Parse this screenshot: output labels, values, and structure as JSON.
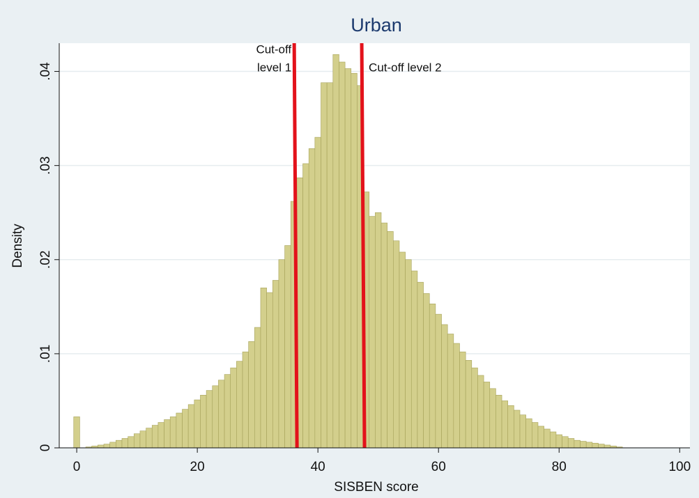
{
  "chart_data": {
    "type": "histogram",
    "title": "Urban",
    "xlabel": "SISBEN score",
    "ylabel": "Density",
    "color": "#d3cf8c",
    "edgecolor": "#a6a25a",
    "bins": [
      -0.5,
      0.5,
      1.5,
      2.5,
      3.5,
      4.5,
      5.5,
      6.5,
      7.5,
      8.5,
      9.5,
      10.5,
      11.5,
      12.5,
      13.5,
      14.5,
      15.5,
      16.5,
      17.5,
      18.5,
      19.5,
      20.5,
      21.5,
      22.5,
      23.5,
      24.5,
      25.5,
      26.5,
      27.5,
      28.5,
      29.5,
      30.5,
      31.5,
      32.5,
      33.5,
      34.5,
      35.5,
      36.5,
      37.5,
      38.5,
      39.5,
      40.5,
      41.5,
      42.5,
      43.5,
      44.5,
      45.5,
      46.5,
      47.5,
      48.5,
      49.5,
      50.5,
      51.5,
      52.5,
      53.5,
      54.5,
      55.5,
      56.5,
      57.5,
      58.5,
      59.5,
      60.5,
      61.5,
      62.5,
      63.5,
      64.5,
      65.5,
      66.5,
      67.5,
      68.5,
      69.5,
      70.5,
      71.5,
      72.5,
      73.5,
      74.5,
      75.5,
      76.5,
      77.5,
      78.5,
      79.5,
      80.5,
      81.5,
      82.5,
      83.5,
      84.5,
      85.5,
      86.5,
      87.5,
      88.5,
      89.5,
      90.5
    ],
    "values": [
      0.0033,
      0,
      0.0001,
      0.0002,
      0.0003,
      0.0004,
      0.0006,
      0.0008,
      0.001,
      0.0012,
      0.0015,
      0.0018,
      0.0021,
      0.0024,
      0.0027,
      0.003,
      0.0033,
      0.0037,
      0.0041,
      0.0046,
      0.0051,
      0.0056,
      0.0061,
      0.0066,
      0.0072,
      0.0078,
      0.0085,
      0.0092,
      0.0102,
      0.0113,
      0.0128,
      0.017,
      0.0165,
      0.0178,
      0.02,
      0.0215,
      0.0262,
      0.0287,
      0.0302,
      0.0318,
      0.033,
      0.0388,
      0.0388,
      0.0418,
      0.041,
      0.0403,
      0.0398,
      0.0385,
      0.0272,
      0.0246,
      0.025,
      0.0239,
      0.023,
      0.022,
      0.0208,
      0.02,
      0.0188,
      0.0176,
      0.0164,
      0.0153,
      0.0142,
      0.0131,
      0.0121,
      0.0111,
      0.0102,
      0.0093,
      0.0085,
      0.0077,
      0.007,
      0.0063,
      0.0056,
      0.005,
      0.0045,
      0.004,
      0.0035,
      0.0031,
      0.0027,
      0.0023,
      0.002,
      0.0017,
      0.0014,
      0.0012,
      0.001,
      0.0008,
      0.0007,
      0.0006,
      0.0005,
      0.0004,
      0.0003,
      0.0002,
      0.0001
    ],
    "cutoffs": [
      {
        "x": 36.3,
        "label": [
          "Cut-off",
          "level 1"
        ],
        "color": "#e3121b"
      },
      {
        "x": 47.5,
        "label": [
          "Cut-off level 2"
        ],
        "color": "#e3121b"
      }
    ],
    "xlim": [
      -2.9,
      101.7
    ],
    "ylim": [
      0,
      0.043
    ],
    "xticks": [
      0,
      20,
      40,
      60,
      80,
      100
    ],
    "yticks": [
      0,
      {
        "value": 0.01,
        "label": ".01"
      },
      {
        "value": 0.02,
        "label": ".02"
      },
      {
        "value": 0.03,
        "label": ".03"
      },
      {
        "value": 0.04,
        "label": ".04"
      }
    ],
    "grid": true
  }
}
